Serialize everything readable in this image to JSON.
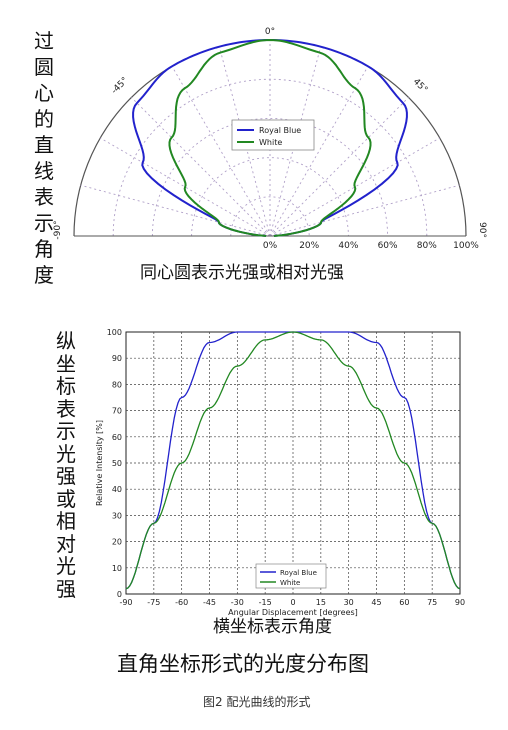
{
  "left_vertical_top": [
    "过",
    "圆",
    "心",
    "的",
    "直",
    "线",
    "表",
    "示",
    "角",
    "度"
  ],
  "left_vertical_bottom": [
    "纵",
    "坐",
    "标",
    "表",
    "示",
    "光",
    "强",
    "或",
    "相",
    "对",
    "光",
    "强"
  ],
  "caption_polar": "同心圆表示光强或相对光强",
  "caption_xaxis": "横坐标表示角度",
  "caption_rect": "直角坐标形式的光度分布图",
  "figure_caption": "图2 配光曲线的形式",
  "colors": {
    "royal_blue": "#2222cc",
    "white": "#228822",
    "grid": "#b0a0c8",
    "axis": "#555555"
  },
  "chart_data": [
    {
      "type": "line",
      "subtype": "polar",
      "angle_ticks": [
        "0°",
        "45°",
        "-45°",
        "90°",
        "-90°"
      ],
      "radial_ticks": [
        "0%",
        "20%",
        "40%",
        "60%",
        "80%",
        "100%"
      ],
      "legend": [
        "Royal Blue",
        "White"
      ],
      "legend_placement": "center",
      "grid": true,
      "series": [
        {
          "name": "Royal Blue",
          "angles": [
            -90,
            -75,
            -60,
            -45,
            -30,
            -15,
            0,
            15,
            30,
            45,
            60,
            75,
            90
          ],
          "values": [
            2,
            27,
            75,
            96,
            100,
            100,
            100,
            100,
            100,
            96,
            75,
            27,
            2
          ]
        },
        {
          "name": "White",
          "angles": [
            -90,
            -75,
            -60,
            -45,
            -30,
            -15,
            0,
            15,
            30,
            45,
            60,
            75,
            90
          ],
          "values": [
            2,
            27,
            50,
            71,
            87,
            97,
            100,
            97,
            87,
            71,
            50,
            27,
            2
          ]
        }
      ]
    },
    {
      "type": "line",
      "x": [
        -90,
        -75,
        -60,
        -45,
        -30,
        -15,
        0,
        15,
        30,
        45,
        60,
        75,
        90
      ],
      "xticks": [
        "-90",
        "-75",
        "-60",
        "-45",
        "-30",
        "-15",
        "0",
        "15",
        "30",
        "45",
        "60",
        "75",
        "90"
      ],
      "yticks": [
        "0",
        "10",
        "20",
        "30",
        "40",
        "50",
        "60",
        "70",
        "80",
        "90",
        "100"
      ],
      "xlabel": "Angular Displacement [degrees]",
      "ylabel": "Relative Intensity [%]",
      "xlim": [
        -90,
        90
      ],
      "ylim": [
        0,
        100
      ],
      "grid": true,
      "legend": [
        "Royal Blue",
        "White"
      ],
      "legend_placement": "lower-center",
      "series": [
        {
          "name": "Royal Blue",
          "values": [
            2,
            27,
            75,
            96,
            100,
            100,
            100,
            100,
            100,
            96,
            75,
            27,
            2
          ]
        },
        {
          "name": "White",
          "values": [
            2,
            27,
            50,
            71,
            87,
            97,
            100,
            97,
            87,
            71,
            50,
            27,
            2
          ]
        }
      ]
    }
  ]
}
